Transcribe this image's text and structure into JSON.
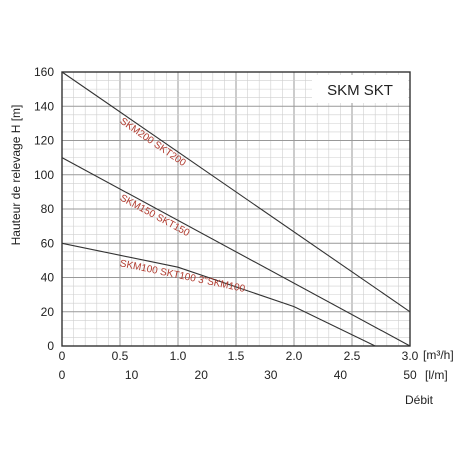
{
  "chart_data": {
    "type": "line",
    "title": "SKM SKT",
    "ylabel": "Hauteur de relevage H [m]",
    "xlabel": "Débit",
    "x_unit_primary": "[m³/h]",
    "x_unit_secondary": "[l/m]",
    "xlim": [
      0,
      3.0
    ],
    "ylim": [
      0,
      160
    ],
    "grid": true,
    "y_ticks": [
      "0",
      "20",
      "40",
      "60",
      "80",
      "100",
      "120",
      "140",
      "160"
    ],
    "x_ticks_primary": [
      "0",
      "0.5",
      "1.0",
      "1.5",
      "2.0",
      "2.5",
      "3.0"
    ],
    "x_ticks_secondary": [
      "0",
      "10",
      "20",
      "30",
      "40",
      "50"
    ],
    "series": [
      {
        "name": "SKM200 SKT200",
        "color": "#333333",
        "x": [
          0,
          3.0
        ],
        "y": [
          160,
          20
        ]
      },
      {
        "name": "SKM150 SKT150",
        "color": "#333333",
        "x": [
          0,
          3.0
        ],
        "y": [
          110,
          0
        ]
      },
      {
        "name": "SKM100 SKT100 3\"SKM100",
        "color": "#333333",
        "x": [
          0,
          1.0,
          2.0,
          2.7
        ],
        "y": [
          60,
          46,
          23,
          0
        ]
      }
    ],
    "label_color": "#b03a2e"
  }
}
